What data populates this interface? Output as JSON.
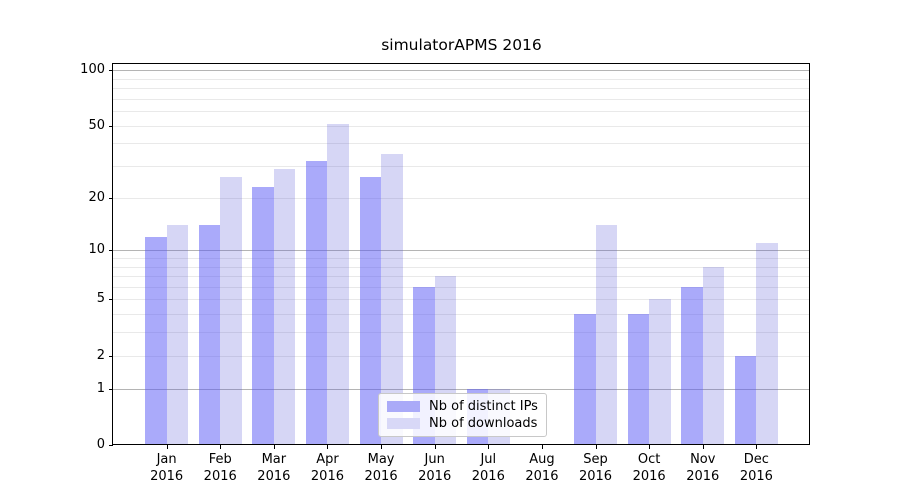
{
  "figure": {
    "background": "#ffffff"
  },
  "chart_data": {
    "type": "bar",
    "title": "simulatorAPMS 2016",
    "categories": [
      "Jan 2016",
      "Feb 2016",
      "Mar 2016",
      "Apr 2016",
      "May 2016",
      "Jun 2016",
      "Jul 2016",
      "Aug 2016",
      "Sep 2016",
      "Oct 2016",
      "Nov 2016",
      "Dec 2016"
    ],
    "x_tick_month": [
      "Jan",
      "Feb",
      "Mar",
      "Apr",
      "May",
      "Jun",
      "Jul",
      "Aug",
      "Sep",
      "Oct",
      "Nov",
      "Dec"
    ],
    "x_tick_year": "2016",
    "series": [
      {
        "name": "Nb of distinct IPs",
        "values": [
          12,
          14,
          23,
          32,
          26,
          6,
          1,
          0,
          4,
          4,
          6,
          2
        ],
        "color": "rgba(85,85,245,0.5)",
        "swatch_color": "#aaaaf8"
      },
      {
        "name": "Nb of downloads",
        "values": [
          14,
          26,
          29,
          51,
          35,
          7,
          1,
          0,
          14,
          5,
          8,
          11
        ],
        "color": "rgba(85,85,215,0.24)",
        "swatch_color": "#d8d8f7"
      }
    ],
    "xlabel": "",
    "ylabel": "",
    "yscale": "log1p",
    "ylim": [
      0,
      108
    ],
    "yticks": [
      0,
      1,
      2,
      5,
      10,
      20,
      50,
      100
    ],
    "grid": "on",
    "grid_major_values": [
      1,
      10,
      100
    ],
    "grid_minor_values": [
      2,
      3,
      4,
      5,
      6,
      7,
      8,
      9,
      20,
      30,
      40,
      50,
      60,
      70,
      80,
      90
    ],
    "grid_major_color": "#b4b4b4",
    "grid_minor_color": "#e9e9e9",
    "legend": {
      "position": "lower center",
      "entries": [
        "Nb of distinct IPs",
        "Nb of downloads"
      ]
    }
  }
}
